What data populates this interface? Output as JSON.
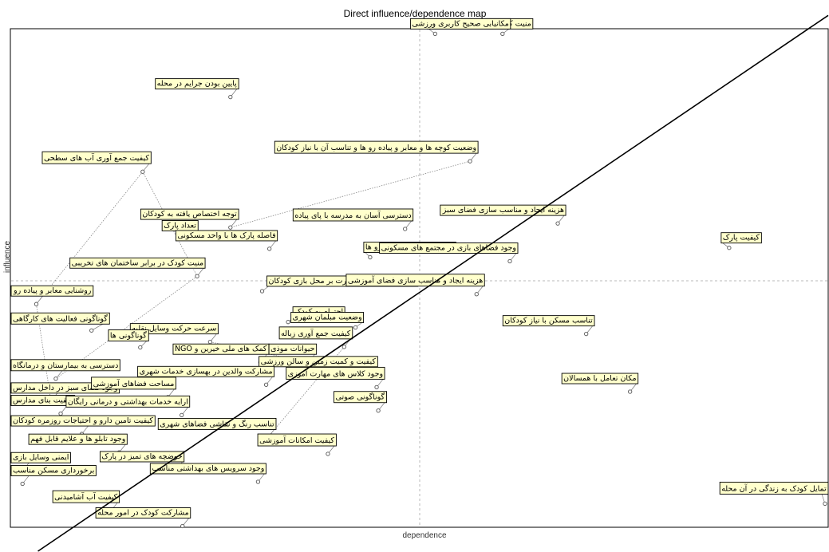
{
  "chart_data": {
    "type": "scatter",
    "title": "Direct influence/dependence map",
    "xlabel": "dependence",
    "ylabel": "influence",
    "xlim": [
      0,
      100
    ],
    "ylim": [
      0,
      100
    ],
    "grid": "center-crosshair-dashed",
    "trend_line": {
      "from": [
        3,
        -8
      ],
      "to": [
        103,
        103
      ]
    },
    "points": [
      {
        "label": "منیت کودک در برابر وسایل نقلیه",
        "x": 51.9,
        "y": 99.3
      },
      {
        "label": "مکانیابی صحیح کاربری ورزشی",
        "x": 60.2,
        "y": 99.3
      },
      {
        "label": "پایین بودن جرایم در محله",
        "x": 26.7,
        "y": 86.6
      },
      {
        "label": "وضعیت کوچه ها و معابر و پیاده رو ها و تناسب آن با نیاز کودکان",
        "x": 56.2,
        "y": 73.7
      },
      {
        "label": "کیفیت جمع آوری آب های سطحی",
        "x": 15.9,
        "y": 71.6
      },
      {
        "label": "هزینه ایجاد و مناسب سازی فضای سبز",
        "x": 67.0,
        "y": 61.2
      },
      {
        "label": "توجه اختصاص یافته به کودکان",
        "x": 26.7,
        "y": 60.4
      },
      {
        "label": "دسترسی آسان به مدرسه با پای پیاده",
        "x": 48.2,
        "y": 60.1
      },
      {
        "label": "تعداد پارک",
        "x": 21.7,
        "y": 58.1
      },
      {
        "label": "فاصله پارک ها با واحد مسکونی",
        "x": 31.5,
        "y": 56.1
      },
      {
        "label": "هزینه ایمن سازی پیاده رو ها",
        "x": 43.9,
        "y": 54.4
      },
      {
        "label": "وجود فضاهای بازی در مجتمع های مسکونی",
        "x": 61.1,
        "y": 53.6
      },
      {
        "label": "کیفیت پارک",
        "x": 88.1,
        "y": 56.3
      },
      {
        "label": "منیت کودک در برابر ساختمان های تخریبی",
        "x": 22.6,
        "y": 50.6
      },
      {
        "label": "روشنایی معابر و پیاده رو",
        "x": 2.8,
        "y": 45.0
      },
      {
        "label": "فراهم بودن امکان نظارت بر محل بازی کودکان",
        "x": 30.6,
        "y": 47.6
      },
      {
        "label": "هزینه ایجاد و مناسب سازی فضای آموزشی",
        "x": 57.0,
        "y": 47.0
      },
      {
        "label": "گوناگونی فعالیت های کارگاهی",
        "x": 9.6,
        "y": 39.7
      },
      {
        "label": "احترام به کودک",
        "x": 33.8,
        "y": 41.4
      },
      {
        "label": "وضعیت مبلمان شهری",
        "x": 42.1,
        "y": 40.3
      },
      {
        "label": "تناسب مسکن با نیاز کودکان",
        "x": 70.5,
        "y": 39.0
      },
      {
        "label": "سرعت حرکت وسایل نقلیه",
        "x": 24.2,
        "y": 37.4
      },
      {
        "label": "کیفیت جمع آوری زباله",
        "x": 40.7,
        "y": 36.4
      },
      {
        "label": "گوناگونی ها",
        "x": 15.6,
        "y": 36.3
      },
      {
        "label": "حیوانات موذی",
        "x": 36.3,
        "y": 33.3
      },
      {
        "label": "کمک های ملی خیرین و NGO",
        "x": 30.4,
        "y": 33.3
      },
      {
        "label": "دسترسی به بیمارستان و درمانگاه",
        "x": 5.2,
        "y": 30.0
      },
      {
        "label": "کیفیت و کمیت زمین و سالن ورزشی",
        "x": 43.8,
        "y": 30.8
      },
      {
        "label": "مشارکت والدین در بهسازی خدمات شهری",
        "x": 31.1,
        "y": 28.8
      },
      {
        "label": "وجود کلاس های مهارت آموزی",
        "x": 44.7,
        "y": 28.3
      },
      {
        "label": "وجود فضای سبز در داخل مدارس",
        "x": 4.6,
        "y": 25.5
      },
      {
        "label": "مساحت فضاهای آموزشی",
        "x": 19.0,
        "y": 26.3
      },
      {
        "label": "مکان تعامل با همسالان",
        "x": 75.9,
        "y": 27.4
      },
      {
        "label": "کیفیت بنای مدارس",
        "x": 5.8,
        "y": 23.0
      },
      {
        "label": "ارایه خدمات بهداشتی و درمانی رایگان",
        "x": 20.7,
        "y": 22.7
      },
      {
        "label": "گوناگونی صوتی",
        "x": 44.9,
        "y": 23.6
      },
      {
        "label": "کیفیت تامین دارو و احتیاجات روزمره کودکان",
        "x": 8.4,
        "y": 18.9
      },
      {
        "label": "تناسب رنگ و نقاشی فضاهای شهری",
        "x": 31.3,
        "y": 18.2
      },
      {
        "label": "وجود تابلو ها و علایم قابل فهم",
        "x": 13.0,
        "y": 15.2
      },
      {
        "label": "کیفیت امکانات آموزشی",
        "x": 38.7,
        "y": 14.9
      },
      {
        "label": "ایمنی وسایل بازی",
        "x": 1.1,
        "y": 11.5
      },
      {
        "label": "حوضچه های تمیز در پارک",
        "x": 20.0,
        "y": 11.7
      },
      {
        "label": "وجود سرویس های بهداشتی مناسب",
        "x": 30.1,
        "y": 9.3
      },
      {
        "label": "برخورداری مسکن مناسب",
        "x": 1.1,
        "y": 8.9
      },
      {
        "label": "تمایل کودک به زندگی در آن محله",
        "x": 99.9,
        "y": 4.9
      },
      {
        "label": "کیفیت آب آشامیدنی",
        "x": 12.0,
        "y": 3.5
      },
      {
        "label": "مشارکت کودک در امور محله",
        "x": 20.8,
        "y": 0.4
      }
    ]
  }
}
